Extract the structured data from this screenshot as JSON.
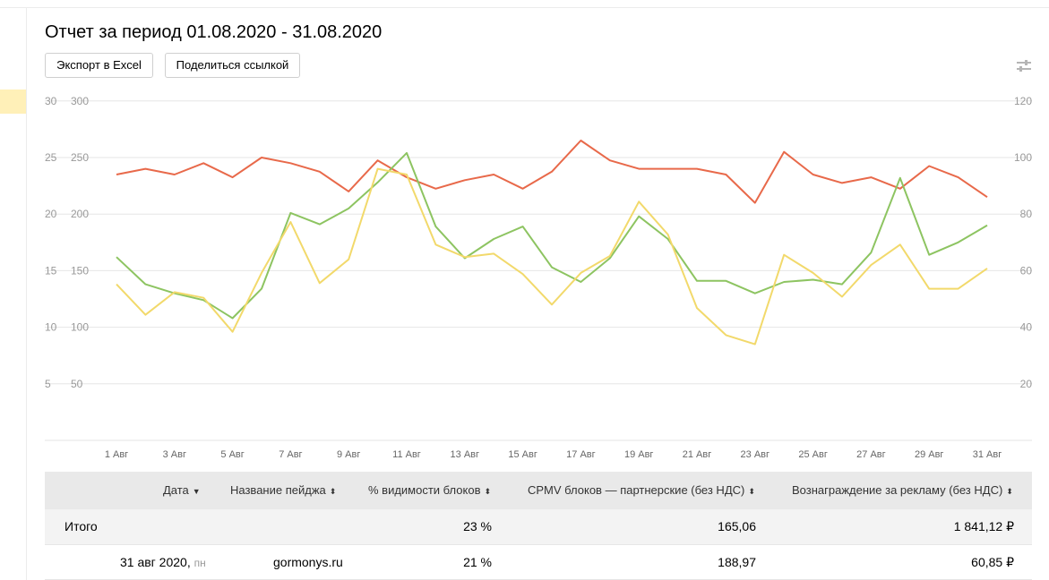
{
  "report": {
    "title": "Отчет за период 01.08.2020 - 31.08.2020",
    "export_label": "Экспорт в Excel",
    "share_label": "Поделиться ссылкой",
    "settings_icon": "sliders-icon"
  },
  "chart_data": {
    "type": "line",
    "x": [
      "1 Авг",
      "2 Авг",
      "3 Авг",
      "4 Авг",
      "5 Авг",
      "6 Авг",
      "7 Авг",
      "8 Авг",
      "9 Авг",
      "10 Авг",
      "11 Авг",
      "12 Авг",
      "13 Авг",
      "14 Авг",
      "15 Авг",
      "16 Авг",
      "17 Авг",
      "18 Авг",
      "19 Авг",
      "20 Авг",
      "21 Авг",
      "22 Авг",
      "23 Авг",
      "24 Авг",
      "25 Авг",
      "26 Авг",
      "27 Авг",
      "28 Авг",
      "29 Авг",
      "30 Авг",
      "31 Авг"
    ],
    "x_tick_labels": [
      "1 Авг",
      "3 Авг",
      "5 Авг",
      "7 Авг",
      "9 Авг",
      "11 Авг",
      "13 Авг",
      "15 Авг",
      "17 Авг",
      "19 Авг",
      "21 Авг",
      "23 Авг",
      "25 Авг",
      "27 Авг",
      "29 Авг",
      "31 Авг"
    ],
    "y_left_outer_ticks": [
      "5",
      "10",
      "15",
      "20",
      "25",
      "30"
    ],
    "y_left_ticks": [
      "50",
      "100",
      "150",
      "200",
      "250",
      "300"
    ],
    "y_right_ticks": [
      "20",
      "40",
      "60",
      "80",
      "100",
      "120"
    ],
    "ylim_left": [
      0,
      300
    ],
    "ylim_right": [
      0,
      120
    ],
    "grid": true,
    "series": [
      {
        "color": "#e8694a",
        "axis": "right",
        "values": [
          94,
          96,
          94,
          98,
          93,
          100,
          98,
          95,
          88,
          99,
          93,
          89,
          92,
          94,
          89,
          95,
          106,
          99,
          96,
          96,
          96,
          94,
          84,
          102,
          94,
          91,
          93,
          89,
          97,
          93,
          86
        ]
      },
      {
        "color": "#8dc461",
        "axis": "left",
        "values": [
          162,
          138,
          130,
          124,
          108,
          134,
          201,
          191,
          205,
          228,
          254,
          189,
          161,
          178,
          189,
          153,
          140,
          161,
          198,
          178,
          141,
          141,
          130,
          140,
          142,
          138,
          166,
          232,
          164,
          175,
          190
        ]
      },
      {
        "color": "#f2d96b",
        "axis": "left",
        "values": [
          138,
          111,
          131,
          126,
          96,
          148,
          193,
          139,
          160,
          240,
          235,
          173,
          162,
          165,
          147,
          120,
          148,
          163,
          211,
          182,
          117,
          93,
          85,
          164,
          148,
          127,
          155,
          173,
          134,
          134,
          152
        ]
      }
    ]
  },
  "table": {
    "columns": [
      {
        "label": "Дата",
        "sort": "▼"
      },
      {
        "label": "Название пейджа",
        "sort": "⬍"
      },
      {
        "label": "% видимости блоков",
        "sort": "⬍"
      },
      {
        "label": "CPMV блоков — партнерские (без НДС)",
        "sort": "⬍"
      },
      {
        "label": "Вознаграждение за рекламу (без НДС)",
        "sort": "⬍"
      }
    ],
    "total": {
      "label": "Итого",
      "visibility": "23 %",
      "cpmv": "165,06",
      "reward": "1 841,12 ₽"
    },
    "rows": [
      {
        "date": "31 авг 2020,",
        "weekday": "пн",
        "page": "gormonys.ru",
        "visibility": "21 %",
        "cpmv": "188,97",
        "reward": "60,85 ₽"
      }
    ]
  }
}
